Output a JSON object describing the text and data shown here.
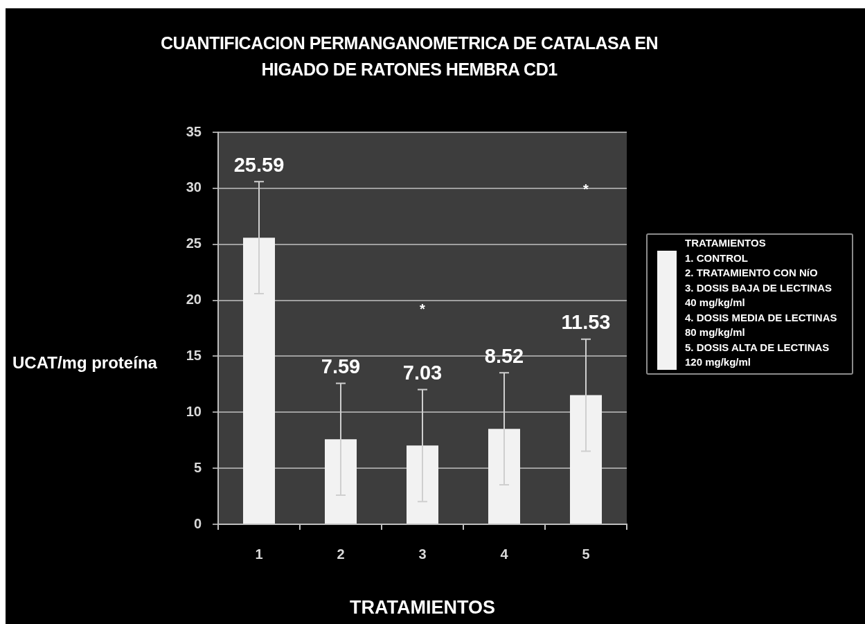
{
  "chart_data": {
    "type": "bar",
    "title": "CUANTIFICACION PERMANGANOMETRICA DE CATALASA EN\nHIGADO DE RATONES HEMBRA CD1",
    "xlabel": "TRATAMIENTOS",
    "ylabel": "UCAT/mg proteína",
    "legend_title": "TRATAMIENTOS",
    "categories": [
      "1",
      "2",
      "3",
      "4",
      "5"
    ],
    "series": [
      {
        "name": "1. CONTROL\n2. TRATAMIENTO CON NíO\n3. DOSIS BAJA DE LECTINAS\n40 mg/kg/ml\n4. DOSIS MEDIA DE LECTINAS\n80 mg/kg/ml\n5. DOSIS ALTA DE LECTINAS\n120 mg/kg/ml",
        "color": "#f2f2f2",
        "values": [
          25.59,
          7.59,
          7.03,
          8.52,
          11.53
        ],
        "errors": [
          5,
          5,
          5,
          5,
          5
        ]
      }
    ],
    "ylim": [
      0,
      35
    ],
    "yticks": [
      0,
      5,
      10,
      15,
      20,
      25,
      30,
      35
    ],
    "grid": "y",
    "legend": "right",
    "data_labels": true,
    "annotations": [
      "*",
      "*"
    ]
  }
}
